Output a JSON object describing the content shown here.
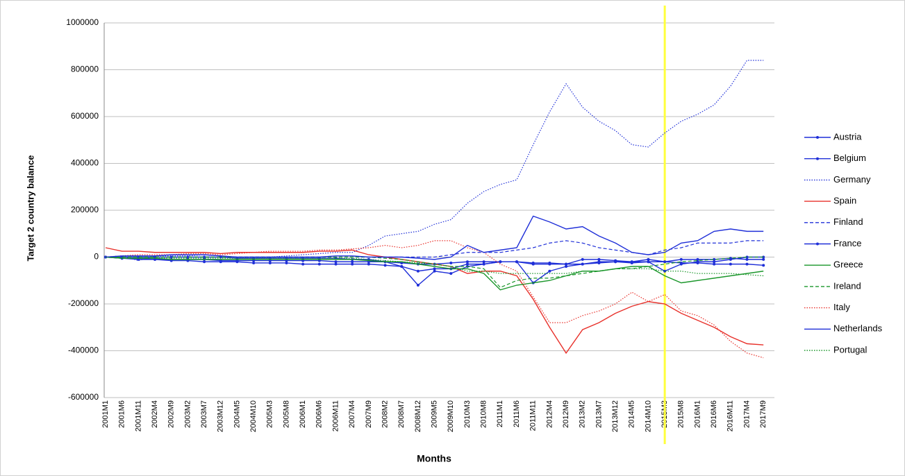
{
  "chart_data": {
    "type": "line",
    "y_label": "Target 2 country balance",
    "x_label": "Months",
    "categories": [
      "2001M1",
      "2001M6",
      "2001M11",
      "2002M4",
      "2002M9",
      "2003M2",
      "2003M7",
      "2003M12",
      "2004M5",
      "2004M10",
      "2005M3",
      "2005M8",
      "2006M1",
      "2006M6",
      "2006M11",
      "2007M4",
      "2007M9",
      "2008M2",
      "2008M7",
      "2008M12",
      "2009M5",
      "2009M10",
      "2010M3",
      "2010M8",
      "2011M1",
      "2011M6",
      "2011M11",
      "2012M4",
      "2012M9",
      "2013M2",
      "2013M7",
      "2013M12",
      "2014M5",
      "2014M10",
      "2015M3",
      "2015M8",
      "2016M1",
      "2016M6",
      "2016M11",
      "2017M4",
      "2017M9"
    ],
    "ylim": [
      -600000,
      1000000
    ],
    "yticks": [
      -600000,
      -400000,
      -200000,
      0,
      200000,
      400000,
      600000,
      800000,
      1000000
    ],
    "grid": true,
    "legend": "right",
    "vline": {
      "x": "2015M3",
      "color": "#ffff3c"
    },
    "series": [
      {
        "name": "Austria",
        "color": "#1f2fd8",
        "dash": "solid",
        "marker": true,
        "values": [
          0,
          -5000,
          -5000,
          -10000,
          -10000,
          -10000,
          -10000,
          -15000,
          -15000,
          -15000,
          -15000,
          -15000,
          -15000,
          -15000,
          -20000,
          -20000,
          -20000,
          -20000,
          -25000,
          -30000,
          -30000,
          -25000,
          -20000,
          -20000,
          -20000,
          -20000,
          -25000,
          -25000,
          -30000,
          -30000,
          -25000,
          -20000,
          -25000,
          -20000,
          -20000,
          -25000,
          -25000,
          -30000,
          -30000,
          -30000,
          -35000
        ]
      },
      {
        "name": "Belgium",
        "color": "#1f2fd8",
        "dash": "solid",
        "marker": true,
        "values": [
          0,
          0,
          0,
          0,
          0,
          0,
          0,
          0,
          -5000,
          -5000,
          -5000,
          -5000,
          -5000,
          -5000,
          -5000,
          -10000,
          -10000,
          -20000,
          -40000,
          -120000,
          -60000,
          -70000,
          -40000,
          -30000,
          -20000,
          -20000,
          -110000,
          -60000,
          -40000,
          -30000,
          -20000,
          -20000,
          -20000,
          -10000,
          -20000,
          -10000,
          -10000,
          -10000,
          -5000,
          -10000,
          -10000
        ]
      },
      {
        "name": "Germany",
        "color": "#1f2fd8",
        "dash": "dotted",
        "marker": false,
        "values": [
          0,
          5000,
          -15000,
          5000,
          5000,
          5000,
          10000,
          5000,
          0,
          -5000,
          0,
          5000,
          10000,
          15000,
          20000,
          20000,
          50000,
          90000,
          100000,
          110000,
          140000,
          160000,
          230000,
          280000,
          310000,
          330000,
          480000,
          620000,
          740000,
          640000,
          580000,
          540000,
          480000,
          470000,
          530000,
          580000,
          610000,
          650000,
          730000,
          840000,
          840000
        ]
      },
      {
        "name": "Spain",
        "color": "#e8302a",
        "dash": "solid",
        "marker": false,
        "values": [
          40000,
          25000,
          25000,
          20000,
          20000,
          20000,
          20000,
          15000,
          20000,
          20000,
          20000,
          20000,
          20000,
          25000,
          25000,
          30000,
          10000,
          0,
          -10000,
          -20000,
          -30000,
          -40000,
          -70000,
          -60000,
          -60000,
          -80000,
          -180000,
          -300000,
          -410000,
          -310000,
          -280000,
          -240000,
          -210000,
          -190000,
          -200000,
          -240000,
          -270000,
          -300000,
          -340000,
          -370000,
          -375000
        ]
      },
      {
        "name": "Finland",
        "color": "#1f2fd8",
        "dash": "dashed",
        "marker": false,
        "values": [
          0,
          0,
          0,
          0,
          0,
          0,
          0,
          0,
          0,
          0,
          0,
          0,
          0,
          0,
          0,
          0,
          0,
          0,
          0,
          0,
          0,
          10000,
          20000,
          20000,
          20000,
          30000,
          40000,
          60000,
          70000,
          60000,
          40000,
          30000,
          20000,
          10000,
          30000,
          40000,
          60000,
          60000,
          60000,
          70000,
          70000
        ]
      },
      {
        "name": "France",
        "color": "#1f2fd8",
        "dash": "solid",
        "marker": true,
        "values": [
          0,
          -5000,
          -10000,
          -10000,
          -15000,
          -15000,
          -20000,
          -20000,
          -20000,
          -25000,
          -25000,
          -25000,
          -30000,
          -30000,
          -30000,
          -30000,
          -30000,
          -35000,
          -40000,
          -60000,
          -50000,
          -50000,
          -30000,
          -30000,
          -20000,
          -20000,
          -30000,
          -30000,
          -30000,
          -10000,
          -10000,
          -15000,
          -20000,
          -20000,
          -60000,
          -30000,
          -20000,
          -20000,
          -10000,
          0,
          0
        ]
      },
      {
        "name": "Greece",
        "color": "#1a962a",
        "dash": "solid",
        "marker": false,
        "values": [
          0,
          -5000,
          -5000,
          -5000,
          -10000,
          -10000,
          -10000,
          -10000,
          -10000,
          -10000,
          -10000,
          -10000,
          -10000,
          -10000,
          -10000,
          -10000,
          -15000,
          -20000,
          -20000,
          -30000,
          -40000,
          -50000,
          -50000,
          -70000,
          -140000,
          -120000,
          -110000,
          -100000,
          -80000,
          -60000,
          -60000,
          -50000,
          -40000,
          -40000,
          -80000,
          -110000,
          -100000,
          -90000,
          -80000,
          -70000,
          -60000
        ]
      },
      {
        "name": "Ireland",
        "color": "#1a962a",
        "dash": "dashed",
        "marker": false,
        "values": [
          0,
          0,
          0,
          0,
          0,
          0,
          0,
          0,
          0,
          0,
          0,
          0,
          0,
          0,
          0,
          0,
          0,
          -5000,
          -10000,
          -20000,
          -30000,
          -40000,
          -40000,
          -50000,
          -130000,
          -100000,
          -90000,
          -90000,
          -80000,
          -70000,
          -60000,
          -50000,
          -50000,
          -40000,
          -30000,
          -20000,
          -15000,
          -10000,
          -5000,
          0,
          0
        ]
      },
      {
        "name": "Italy",
        "color": "#e8302a",
        "dash": "dotted",
        "marker": false,
        "values": [
          0,
          5000,
          10000,
          10000,
          10000,
          15000,
          15000,
          10000,
          15000,
          20000,
          25000,
          25000,
          25000,
          30000,
          30000,
          35000,
          40000,
          50000,
          40000,
          50000,
          70000,
          70000,
          40000,
          20000,
          -30000,
          -60000,
          -170000,
          -280000,
          -280000,
          -250000,
          -230000,
          -200000,
          -150000,
          -190000,
          -160000,
          -230000,
          -250000,
          -290000,
          -360000,
          -410000,
          -430000
        ]
      },
      {
        "name": "Netherlands",
        "color": "#1f2fd8",
        "dash": "solid",
        "marker": false,
        "values": [
          0,
          5000,
          5000,
          5000,
          10000,
          10000,
          10000,
          5000,
          0,
          0,
          0,
          0,
          0,
          0,
          5000,
          5000,
          0,
          0,
          0,
          -5000,
          -10000,
          0,
          50000,
          20000,
          30000,
          40000,
          175000,
          150000,
          120000,
          130000,
          90000,
          60000,
          20000,
          10000,
          20000,
          60000,
          70000,
          110000,
          120000,
          110000,
          110000
        ]
      },
      {
        "name": "Portugal",
        "color": "#1a962a",
        "dash": "dotted",
        "marker": false,
        "values": [
          0,
          -5000,
          -5000,
          -5000,
          -5000,
          -5000,
          -5000,
          -5000,
          -5000,
          -5000,
          -5000,
          -5000,
          -5000,
          -5000,
          -5000,
          -5000,
          -10000,
          -15000,
          -20000,
          -25000,
          -30000,
          -40000,
          -60000,
          -60000,
          -70000,
          -70000,
          -70000,
          -70000,
          -70000,
          -60000,
          -60000,
          -50000,
          -50000,
          -50000,
          -60000,
          -60000,
          -70000,
          -70000,
          -70000,
          -75000,
          -80000
        ]
      }
    ]
  }
}
